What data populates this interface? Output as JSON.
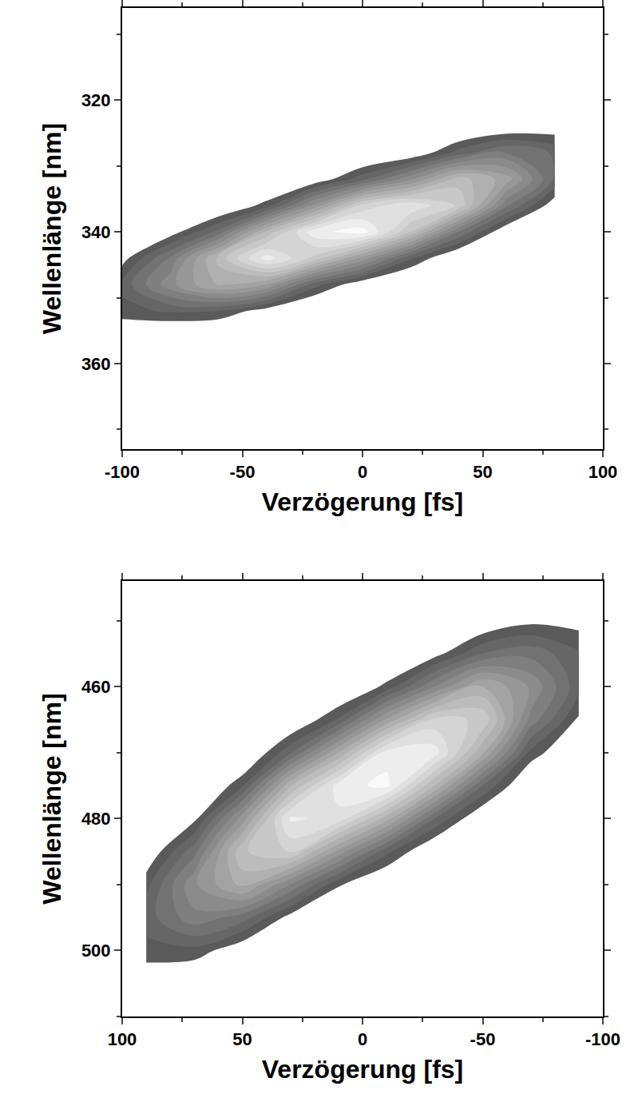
{
  "chart_data": [
    {
      "type": "contour",
      "xlabel": "Verzögerung [fs]",
      "ylabel": "Wellenlänge [nm]",
      "color": "#5a5a5a",
      "xlim": [
        -100,
        100
      ],
      "xticks": [
        -100,
        -50,
        0,
        50,
        100
      ],
      "ylim": [
        373,
        306
      ],
      "yticks": [
        320,
        340,
        360
      ],
      "zlim": [
        0,
        1
      ],
      "x": [
        -100,
        -80,
        -60,
        -40,
        -20,
        0,
        20,
        40,
        60,
        80
      ],
      "y": [
        316,
        320,
        324,
        328,
        332,
        336,
        340,
        344,
        348,
        352,
        356,
        360
      ],
      "z": [
        [
          0,
          0,
          0,
          0,
          0,
          0,
          0,
          0,
          0,
          0
        ],
        [
          0,
          0,
          0,
          0,
          0,
          0,
          0,
          0,
          0.01,
          0.02
        ],
        [
          0,
          0,
          0,
          0,
          0,
          0,
          0.01,
          0.04,
          0.09,
          0.11
        ],
        [
          0,
          0,
          0,
          0,
          0.01,
          0.04,
          0.09,
          0.25,
          0.35,
          0.27
        ],
        [
          0,
          0,
          0,
          0.02,
          0.1,
          0.26,
          0.45,
          0.67,
          0.55,
          0.27
        ],
        [
          0,
          0.02,
          0.06,
          0.19,
          0.48,
          0.78,
          0.87,
          0.75,
          0.35,
          0.11
        ],
        [
          0.03,
          0.12,
          0.3,
          0.65,
          0.92,
          0.97,
          0.7,
          0.34,
          0.09,
          0.02
        ],
        [
          0.13,
          0.35,
          0.66,
          0.91,
          0.74,
          0.5,
          0.23,
          0.06,
          0.01,
          0
        ],
        [
          0.24,
          0.44,
          0.59,
          0.52,
          0.25,
          0.1,
          0.03,
          0,
          0,
          0
        ],
        [
          0.2,
          0.23,
          0.22,
          0.12,
          0.03,
          0.01,
          0,
          0,
          0,
          0
        ],
        [
          0.07,
          0.05,
          0.03,
          0.01,
          0,
          0,
          0,
          0,
          0,
          0
        ],
        [
          0.01,
          0,
          0,
          0,
          0,
          0,
          0,
          0,
          0,
          0
        ]
      ]
    },
    {
      "type": "contour",
      "xlabel": "Verzögerung [fs]",
      "ylabel": "Wellenlänge [nm]",
      "color": "#5a5a5a",
      "xlim": [
        100,
        -100
      ],
      "xticks": [
        100,
        50,
        0,
        -50,
        -100
      ],
      "ylim": [
        510,
        444
      ],
      "yticks": [
        460,
        480,
        500
      ],
      "zlim": [
        0,
        1
      ],
      "x": [
        90,
        70,
        50,
        30,
        10,
        -10,
        -30,
        -50,
        -70,
        -90
      ],
      "y": [
        445,
        450,
        455,
        460,
        465,
        470,
        475,
        480,
        485,
        490,
        495,
        500,
        505,
        510
      ],
      "z": [
        [
          0,
          0,
          0,
          0,
          0,
          0,
          0,
          0.01,
          0.03,
          0.05
        ],
        [
          0,
          0,
          0,
          0,
          0,
          0.01,
          0.02,
          0.08,
          0.14,
          0.13
        ],
        [
          0,
          0,
          0,
          0,
          0.01,
          0.04,
          0.13,
          0.28,
          0.32,
          0.23
        ],
        [
          0,
          0,
          0,
          0.01,
          0.05,
          0.18,
          0.4,
          0.59,
          0.45,
          0.24
        ],
        [
          0,
          0,
          0.01,
          0.07,
          0.23,
          0.53,
          0.78,
          0.75,
          0.38,
          0.15
        ],
        [
          0,
          0.01,
          0.05,
          0.27,
          0.58,
          0.91,
          0.91,
          0.59,
          0.2,
          0.06
        ],
        [
          0,
          0.03,
          0.21,
          0.63,
          0.91,
          0.96,
          0.64,
          0.28,
          0.06,
          0.01
        ],
        [
          0.03,
          0.14,
          0.49,
          0.89,
          0.86,
          0.61,
          0.28,
          0.08,
          0.01,
          0
        ],
        [
          0.09,
          0.32,
          0.69,
          0.77,
          0.5,
          0.24,
          0.07,
          0.01,
          0,
          0
        ],
        [
          0.2,
          0.45,
          0.6,
          0.4,
          0.17,
          0.06,
          0.01,
          0,
          0,
          0
        ],
        [
          0.25,
          0.38,
          0.31,
          0.13,
          0.04,
          0.01,
          0,
          0,
          0,
          0
        ],
        [
          0.2,
          0.2,
          0.1,
          0.02,
          0,
          0,
          0,
          0,
          0,
          0
        ],
        [
          0.09,
          0.06,
          0.02,
          0,
          0,
          0,
          0,
          0,
          0,
          0
        ],
        [
          0.03,
          0.01,
          0,
          0,
          0,
          0,
          0,
          0,
          0,
          0
        ]
      ]
    }
  ]
}
